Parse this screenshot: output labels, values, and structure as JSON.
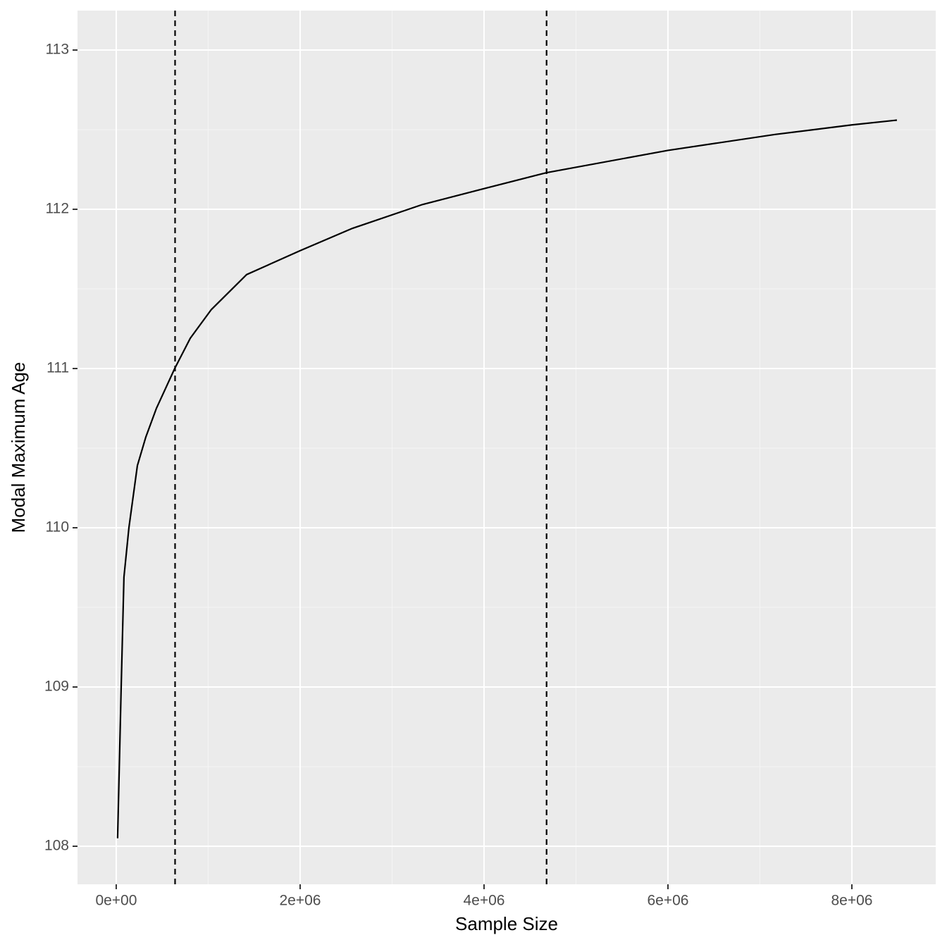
{
  "chart_data": {
    "type": "line",
    "x_label": "Sample Size",
    "y_label": "Modal Maximum Age",
    "x": [
      15000,
      54000,
      84000,
      138000,
      230000,
      322000,
      437000,
      636000,
      805000,
      1034000,
      1418000,
      2000000,
      2567000,
      3330000,
      4000000,
      4680000,
      6000000,
      7165000,
      8000000,
      8490000
    ],
    "series": [
      {
        "color": "#000000",
        "values": [
          108.05,
          109.0,
          109.69,
          110.0,
          110.39,
          110.57,
          110.75,
          111.0,
          111.19,
          111.37,
          111.59,
          111.74,
          111.88,
          112.03,
          112.13,
          112.23,
          112.37,
          112.47,
          112.53,
          112.56
        ]
      }
    ],
    "vlines": [
      640000,
      4680000
    ],
    "xlim": [
      -421000,
      8912000
    ],
    "ylim": [
      107.761,
      113.248
    ],
    "xticks": [
      {
        "value": 0,
        "label": "0e+00"
      },
      {
        "value": 2000000,
        "label": "2e+06"
      },
      {
        "value": 4000000,
        "label": "4e+06"
      },
      {
        "value": 6000000,
        "label": "6e+06"
      },
      {
        "value": 8000000,
        "label": "8e+06"
      }
    ],
    "yticks": [
      108,
      109,
      110,
      111,
      112,
      113
    ],
    "grid": true
  }
}
